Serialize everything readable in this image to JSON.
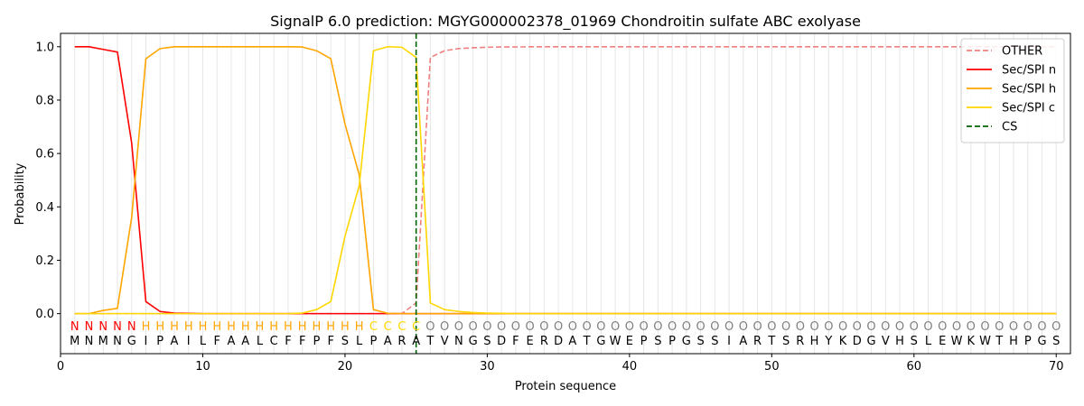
{
  "chart_data": {
    "type": "line",
    "title": "SignalP 6.0 prediction: MGYG000002378_01969 Chondroitin sulfate ABC exolyase",
    "xlabel": "Protein sequence",
    "ylabel": "Probability",
    "xlim": [
      0,
      71
    ],
    "ylim": [
      -0.15,
      1.05
    ],
    "xticks": [
      0,
      10,
      20,
      30,
      40,
      50,
      60,
      70
    ],
    "yticks": [
      0.0,
      0.2,
      0.4,
      0.6,
      0.8,
      1.0
    ],
    "grid": "vertical lines at each residue",
    "legend_position": "top-right",
    "x": [
      1,
      2,
      3,
      4,
      5,
      6,
      7,
      8,
      9,
      10,
      11,
      12,
      13,
      14,
      15,
      16,
      17,
      18,
      19,
      20,
      21,
      22,
      23,
      24,
      25,
      26,
      27,
      28,
      29,
      30,
      31,
      32,
      33,
      34,
      35,
      36,
      37,
      38,
      39,
      40,
      41,
      42,
      43,
      44,
      45,
      46,
      47,
      48,
      49,
      50,
      51,
      52,
      53,
      54,
      55,
      56,
      57,
      58,
      59,
      60,
      61,
      62,
      63,
      64,
      65,
      66,
      67,
      68,
      69,
      70
    ],
    "sequence": [
      "M",
      "N",
      "M",
      "N",
      "G",
      "I",
      "P",
      "A",
      "I",
      "L",
      "F",
      "A",
      "A",
      "L",
      "C",
      "F",
      "F",
      "P",
      "F",
      "S",
      "L",
      "P",
      "A",
      "R",
      "A",
      "T",
      "V",
      "N",
      "G",
      "S",
      "D",
      "F",
      "E",
      "R",
      "D",
      "A",
      "T",
      "G",
      "W",
      "E",
      "P",
      "S",
      "P",
      "G",
      "S",
      "S",
      "I",
      "A",
      "R",
      "T",
      "S",
      "R",
      "H",
      "Y",
      "K",
      "D",
      "G",
      "V",
      "H",
      "S",
      "L",
      "E",
      "W",
      "K",
      "W",
      "T",
      "H",
      "P",
      "G",
      "S"
    ],
    "region_labels": [
      "N",
      "N",
      "N",
      "N",
      "N",
      "H",
      "H",
      "H",
      "H",
      "H",
      "H",
      "H",
      "H",
      "H",
      "H",
      "H",
      "H",
      "H",
      "H",
      "H",
      "H",
      "C",
      "C",
      "C",
      "C",
      "O",
      "O",
      "O",
      "O",
      "O",
      "O",
      "O",
      "O",
      "O",
      "O",
      "O",
      "O",
      "O",
      "O",
      "O",
      "O",
      "O",
      "O",
      "O",
      "O",
      "O",
      "O",
      "O",
      "O",
      "O",
      "O",
      "O",
      "O",
      "O",
      "O",
      "O",
      "O",
      "O",
      "O",
      "O",
      "O",
      "O",
      "O",
      "O",
      "O",
      "O",
      "O",
      "O",
      "O",
      "O"
    ],
    "region_colors": {
      "N": "#ff0000",
      "H": "#ffa500",
      "C": "#ffd700",
      "O": "#808080"
    },
    "series": [
      {
        "name": "OTHER",
        "color": "#f08080",
        "dash": "dashed",
        "values": [
          0,
          0,
          0,
          0,
          0,
          0,
          0,
          0,
          0,
          0,
          0,
          0,
          0,
          0,
          0,
          0,
          0,
          0,
          0,
          0,
          0,
          0,
          0,
          0,
          0.04,
          0.96,
          0.985,
          0.993,
          0.996,
          0.998,
          0.999,
          0.999,
          1,
          1,
          1,
          1,
          1,
          1,
          1,
          1,
          1,
          1,
          1,
          1,
          1,
          1,
          1,
          1,
          1,
          1,
          1,
          1,
          1,
          1,
          1,
          1,
          1,
          1,
          1,
          1,
          1,
          1,
          1,
          1,
          1,
          1,
          1,
          1,
          1,
          1
        ]
      },
      {
        "name": "Sec/SPI n",
        "color": "#ff0000",
        "dash": "solid",
        "values": [
          1.0,
          1.0,
          0.99,
          0.98,
          0.64,
          0.045,
          0.008,
          0.002,
          0.001,
          0,
          0,
          0,
          0,
          0,
          0,
          0,
          0,
          0,
          0,
          0,
          0,
          0,
          0,
          0,
          0,
          0,
          0,
          0,
          0,
          0,
          0,
          0,
          0,
          0,
          0,
          0,
          0,
          0,
          0,
          0,
          0,
          0,
          0,
          0,
          0,
          0,
          0,
          0,
          0,
          0,
          0,
          0,
          0,
          0,
          0,
          0,
          0,
          0,
          0,
          0,
          0,
          0,
          0,
          0,
          0,
          0,
          0,
          0,
          0,
          0
        ]
      },
      {
        "name": "Sec/SPI h",
        "color": "#ffa500",
        "dash": "solid",
        "values": [
          0,
          0,
          0.012,
          0.02,
          0.36,
          0.955,
          0.993,
          1.0,
          1.0,
          1.0,
          1.0,
          1.0,
          1.0,
          1.0,
          1.0,
          1.0,
          0.999,
          0.985,
          0.955,
          0.71,
          0.52,
          0.015,
          0.001,
          0,
          0,
          0,
          0,
          0,
          0,
          0,
          0,
          0,
          0,
          0,
          0,
          0,
          0,
          0,
          0,
          0,
          0,
          0,
          0,
          0,
          0,
          0,
          0,
          0,
          0,
          0,
          0,
          0,
          0,
          0,
          0,
          0,
          0,
          0,
          0,
          0,
          0,
          0,
          0,
          0,
          0,
          0,
          0,
          0,
          0,
          0
        ]
      },
      {
        "name": "Sec/SPI c",
        "color": "#ffd700",
        "dash": "solid",
        "values": [
          0,
          0,
          0,
          0,
          0,
          0,
          0,
          0,
          0,
          0,
          0,
          0,
          0,
          0,
          0,
          0,
          0.002,
          0.015,
          0.045,
          0.29,
          0.48,
          0.985,
          1.0,
          0.998,
          0.96,
          0.04,
          0.015,
          0.008,
          0.004,
          0.002,
          0.001,
          0,
          0,
          0,
          0,
          0,
          0,
          0,
          0,
          0,
          0,
          0,
          0,
          0,
          0,
          0,
          0,
          0,
          0,
          0,
          0,
          0,
          0,
          0,
          0,
          0,
          0,
          0,
          0,
          0,
          0,
          0,
          0,
          0,
          0,
          0,
          0,
          0,
          0,
          0
        ]
      }
    ],
    "cs_marker": {
      "name": "CS",
      "x": 25,
      "color": "#006400",
      "dash": "dashed"
    }
  }
}
